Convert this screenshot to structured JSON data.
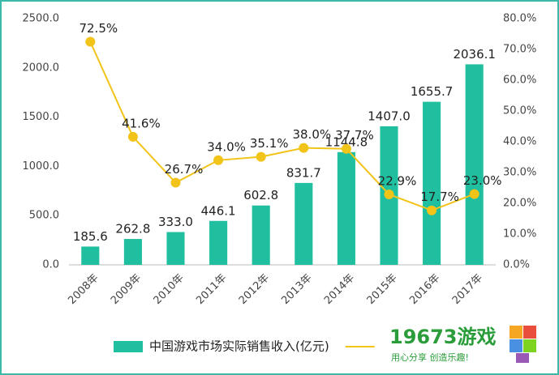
{
  "chart_data": {
    "type": "bar-line",
    "categories": [
      "2008年",
      "2009年",
      "2010年",
      "2011年",
      "2012年",
      "2013年",
      "2014年",
      "2015年",
      "2016年",
      "2017年"
    ],
    "series": [
      {
        "name": "中国游戏市场实际销售收入(亿元)",
        "type": "bar",
        "color": "#1fbf9f",
        "values": [
          185.6,
          262.8,
          333.0,
          446.1,
          602.8,
          831.7,
          1144.8,
          1407.0,
          1655.7,
          2036.1
        ],
        "value_labels": [
          "185.6",
          "262.8",
          "333.0",
          "446.1",
          "602.8",
          "831.7",
          "1144.8",
          "1407.0",
          "1655.7",
          "2036.1"
        ]
      },
      {
        "type": "line",
        "axis": "y2",
        "color": "#f2c318",
        "values": [
          72.5,
          41.6,
          26.7,
          34.0,
          35.1,
          38.0,
          37.7,
          22.9,
          17.7,
          23.0
        ],
        "value_labels": [
          "72.5%",
          "41.6%",
          "26.7%",
          "34.0%",
          "35.1%",
          "38.0%",
          "37.7%",
          "22.9%",
          "17.7%",
          "23.0%"
        ]
      }
    ],
    "ylim": [
      0,
      2500
    ],
    "yticks": [
      {
        "value": 0,
        "label": "0.0"
      },
      {
        "value": 500,
        "label": "500.0"
      },
      {
        "value": 1000,
        "label": "1000.0"
      },
      {
        "value": 1500,
        "label": "1500.0"
      },
      {
        "value": 2000,
        "label": "2000.0"
      },
      {
        "value": 2500,
        "label": "2500.0"
      }
    ],
    "y2lim": [
      0,
      80
    ],
    "y2ticks": [
      {
        "value": 0,
        "label": "0.0%"
      },
      {
        "value": 10,
        "label": "10.0%"
      },
      {
        "value": 20,
        "label": "20.0%"
      },
      {
        "value": 30,
        "label": "30.0%"
      },
      {
        "value": 40,
        "label": "40.0%"
      },
      {
        "value": 50,
        "label": "50.0%"
      },
      {
        "value": 60,
        "label": "60.0%"
      },
      {
        "value": 70,
        "label": "70.0%"
      },
      {
        "value": 80,
        "label": "80.0%"
      }
    ],
    "watermark": {
      "title": "19673游戏",
      "slogan": "用心分享 创造乐趣!"
    }
  }
}
